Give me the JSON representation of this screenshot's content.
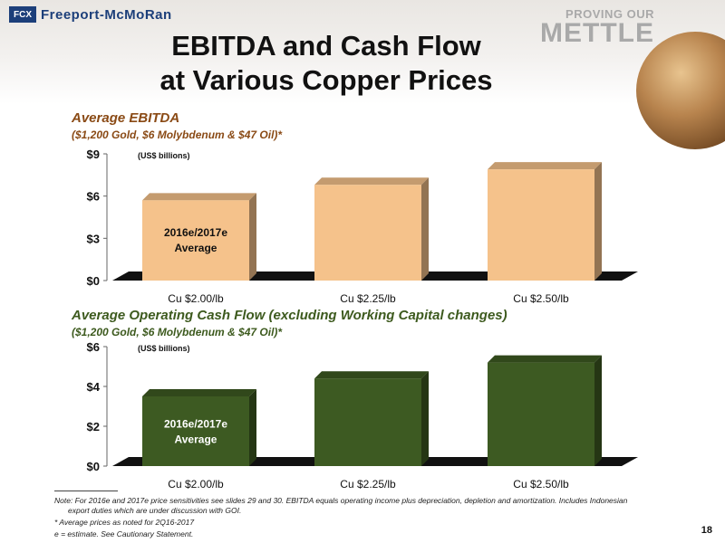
{
  "header": {
    "company": "Freeport-McMoRan",
    "logo_mark": "FCX",
    "tagline_line1": "PROVING OUR",
    "tagline_line2": "METTLE",
    "title_line1": "EBITDA and Cash Flow",
    "title_line2": "at Various Copper Prices"
  },
  "chart_data": [
    {
      "type": "bar",
      "title": "Average EBITDA",
      "subtitle": "($1,200 Gold, $6 Molybdenum & $47 Oil)*",
      "unit_label": "(US$ billions)",
      "categories": [
        "Cu $2.00/lb",
        "Cu $2.25/lb",
        "Cu $2.50/lb"
      ],
      "values": [
        5.7,
        6.8,
        7.9
      ],
      "ylim": [
        0,
        9
      ],
      "yticks": [
        "$0",
        "$3",
        "$6",
        "$9"
      ],
      "bar_annotation_line1": "2016e/2017e",
      "bar_annotation_line2": "Average",
      "color": "#f5c28b",
      "annotation_color": "#111111"
    },
    {
      "type": "bar",
      "title": "Average Operating Cash Flow (excluding Working Capital changes)",
      "subtitle": "($1,200 Gold, $6 Molybdenum & $47 Oil)*",
      "unit_label": "(US$ billions)",
      "categories": [
        "Cu $2.00/lb",
        "Cu $2.25/lb",
        "Cu $2.50/lb"
      ],
      "values": [
        3.5,
        4.4,
        5.2
      ],
      "ylim": [
        0,
        6
      ],
      "yticks": [
        "$0",
        "$2",
        "$4",
        "$6"
      ],
      "bar_annotation_line1": "2016e/2017e",
      "bar_annotation_line2": "Average",
      "color": "#3d5a22",
      "annotation_color": "#ffffff"
    }
  ],
  "footnotes": {
    "note_line1": "Note: For 2016e and 2017e price sensitivities see slides 29 and 30. EBITDA equals operating income plus depreciation, depletion and amortization. Includes Indonesian",
    "note_line2": "export duties which are under discussion with GOI.",
    "star": "*  Average prices as noted for 2Q16-2017",
    "estimate": "e = estimate. See Cautionary Statement."
  },
  "page_number": "18"
}
